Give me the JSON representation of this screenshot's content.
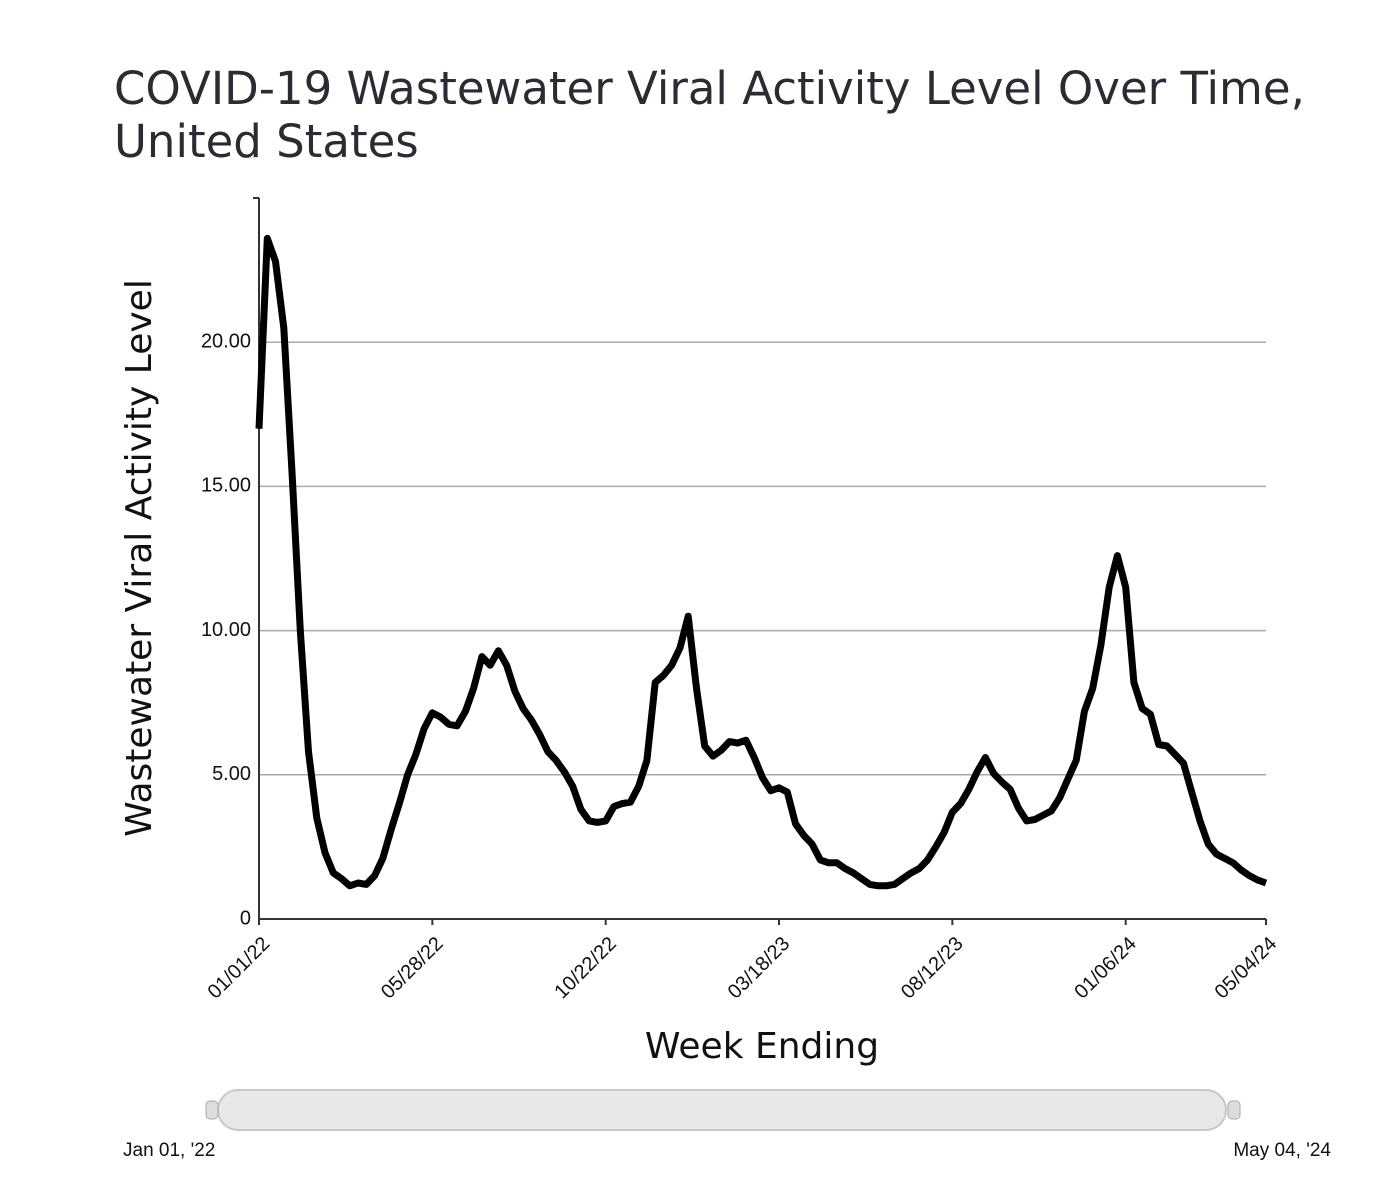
{
  "chart_data": {
    "type": "line",
    "title": "COVID-19 Wastewater Viral Activity Level Over Time, United States",
    "x_label": "Week Ending",
    "y_label": "Wastewater Viral Activity Level",
    "x": [
      "01/01/22",
      "01/08/22",
      "01/15/22",
      "01/22/22",
      "01/29/22",
      "02/05/22",
      "02/12/22",
      "02/19/22",
      "02/26/22",
      "03/05/22",
      "03/12/22",
      "03/19/22",
      "03/26/22",
      "04/02/22",
      "04/09/22",
      "04/16/22",
      "04/23/22",
      "04/30/22",
      "05/07/22",
      "05/14/22",
      "05/21/22",
      "05/28/22",
      "06/04/22",
      "06/11/22",
      "06/18/22",
      "06/25/22",
      "07/02/22",
      "07/09/22",
      "07/16/22",
      "07/23/22",
      "07/30/22",
      "08/06/22",
      "08/13/22",
      "08/20/22",
      "08/27/22",
      "09/03/22",
      "09/10/22",
      "09/17/22",
      "09/24/22",
      "10/01/22",
      "10/08/22",
      "10/15/22",
      "10/22/22",
      "10/29/22",
      "11/05/22",
      "11/12/22",
      "11/19/22",
      "11/26/22",
      "12/03/22",
      "12/10/22",
      "12/17/22",
      "12/24/22",
      "12/31/22",
      "01/07/23",
      "01/14/23",
      "01/21/23",
      "01/28/23",
      "02/04/23",
      "02/11/23",
      "02/18/23",
      "02/25/23",
      "03/04/23",
      "03/11/23",
      "03/18/23",
      "03/25/23",
      "04/01/23",
      "04/08/23",
      "04/15/23",
      "04/22/23",
      "04/29/23",
      "05/06/23",
      "05/13/23",
      "05/20/23",
      "05/27/23",
      "06/03/23",
      "06/10/23",
      "06/17/23",
      "06/24/23",
      "07/01/23",
      "07/08/23",
      "07/15/23",
      "07/22/23",
      "07/29/23",
      "08/05/23",
      "08/12/23",
      "08/19/23",
      "08/26/23",
      "09/02/23",
      "09/09/23",
      "09/16/23",
      "09/23/23",
      "09/30/23",
      "10/07/23",
      "10/14/23",
      "10/21/23",
      "10/28/23",
      "11/04/23",
      "11/11/23",
      "11/18/23",
      "11/25/23",
      "12/02/23",
      "12/09/23",
      "12/16/23",
      "12/23/23",
      "12/30/23",
      "01/06/24",
      "01/13/24",
      "01/20/24",
      "01/27/24",
      "02/03/24",
      "02/10/24",
      "02/17/24",
      "02/24/24",
      "03/02/24",
      "03/09/24",
      "03/16/24",
      "03/23/24",
      "03/30/24",
      "04/06/24",
      "04/13/24",
      "04/20/24",
      "04/27/24",
      "05/04/24"
    ],
    "series": [
      {
        "name": "Wastewater Viral Activity Level",
        "color": "#000000",
        "values": [
          17.0,
          23.6,
          22.8,
          20.5,
          15.5,
          10.0,
          5.8,
          3.5,
          2.3,
          1.6,
          1.4,
          1.15,
          1.25,
          1.2,
          1.5,
          2.1,
          3.1,
          4.0,
          5.0,
          5.7,
          6.6,
          7.15,
          7.0,
          6.75,
          6.7,
          7.2,
          8.0,
          9.1,
          8.8,
          9.3,
          8.8,
          7.9,
          7.3,
          6.9,
          6.4,
          5.8,
          5.5,
          5.1,
          4.6,
          3.8,
          3.4,
          3.35,
          3.4,
          3.9,
          4.0,
          4.05,
          4.6,
          5.5,
          8.2,
          8.45,
          8.8,
          9.4,
          10.5,
          8.0,
          6.0,
          5.65,
          5.85,
          6.15,
          6.1,
          6.2,
          5.6,
          4.9,
          4.45,
          4.55,
          4.4,
          3.3,
          2.9,
          2.6,
          2.05,
          1.95,
          1.95,
          1.75,
          1.6,
          1.4,
          1.2,
          1.15,
          1.15,
          1.2,
          1.4,
          1.6,
          1.75,
          2.05,
          2.5,
          3.0,
          3.7,
          4.0,
          4.5,
          5.1,
          5.6,
          5.05,
          4.75,
          4.5,
          3.85,
          3.4,
          3.45,
          3.6,
          3.75,
          4.2,
          4.85,
          5.5,
          7.2,
          8.0,
          9.5,
          11.5,
          12.6,
          11.5,
          8.2,
          7.3,
          7.1,
          6.05,
          6.0,
          5.7,
          5.4,
          4.4,
          3.4,
          2.6,
          2.25,
          2.1,
          1.95,
          1.7,
          1.5,
          1.35,
          1.25
        ]
      }
    ],
    "xlim": [
      "01/01/22",
      "05/04/24"
    ],
    "xticks": [
      "01/01/22",
      "05/28/22",
      "10/22/22",
      "03/18/23",
      "08/12/23",
      "01/06/24",
      "05/04/24"
    ],
    "ylim": [
      0,
      25
    ],
    "yticks": [
      0,
      {
        "value": 5,
        "label": "5.00"
      },
      {
        "value": 10,
        "label": "10.00"
      },
      {
        "value": 15,
        "label": "15.00"
      },
      {
        "value": 20,
        "label": "20.00"
      }
    ],
    "grid": true,
    "range_slider": {
      "start_label": "Jan 01, '22",
      "end_label": "May 04, '24"
    }
  }
}
